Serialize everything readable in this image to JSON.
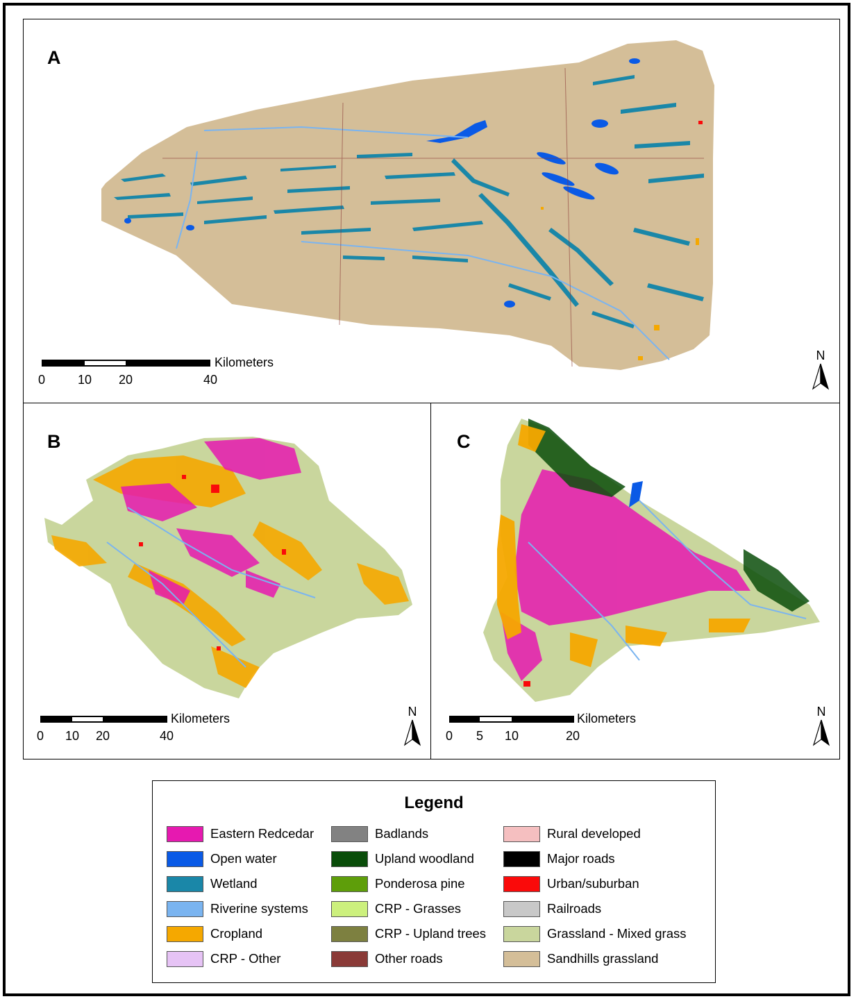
{
  "panels": {
    "a": {
      "label": "A"
    },
    "b": {
      "label": "B"
    },
    "c": {
      "label": "C"
    }
  },
  "scalebars": {
    "a": {
      "unit": "Kilometers",
      "ticks": [
        "0",
        "10",
        "20",
        "40"
      ]
    },
    "b": {
      "unit": "Kilometers",
      "ticks": [
        "0",
        "10",
        "20",
        "40"
      ]
    },
    "c": {
      "unit": "Kilometers",
      "ticks": [
        "0",
        "5",
        "10",
        "20"
      ]
    }
  },
  "north_arrow": {
    "label": "N",
    "icon": "north-arrow-icon"
  },
  "legend": {
    "title": "Legend",
    "items": [
      {
        "label": "Eastern Redcedar",
        "color": "#E619B0"
      },
      {
        "label": "Open water",
        "color": "#0A5AE6"
      },
      {
        "label": "Wetland",
        "color": "#1A87A8"
      },
      {
        "label": "Riverine systems",
        "color": "#7AB4F0"
      },
      {
        "label": "Cropland",
        "color": "#F5A800"
      },
      {
        "label": "CRP - Other",
        "color": "#E6C3F5"
      },
      {
        "label": "Badlands",
        "color": "#828282"
      },
      {
        "label": "Upland woodland",
        "color": "#0A4D0A"
      },
      {
        "label": "Ponderosa pine",
        "color": "#5E9E0A"
      },
      {
        "label": "CRP - Grasses",
        "color": "#CCF07D"
      },
      {
        "label": "CRP - Upland trees",
        "color": "#7D8040"
      },
      {
        "label": "Other roads",
        "color": "#8A3A37"
      },
      {
        "label": "Rural developed",
        "color": "#F5BFC0"
      },
      {
        "label": "Major roads",
        "color": "#000000"
      },
      {
        "label": "Urban/suburban",
        "color": "#FA0A0A"
      },
      {
        "label": "Railroads",
        "color": "#C8C8C8"
      },
      {
        "label": "Grassland - Mixed grass",
        "color": "#C9D69D"
      },
      {
        "label": "Sandhills grassland",
        "color": "#D4BE98"
      }
    ]
  }
}
